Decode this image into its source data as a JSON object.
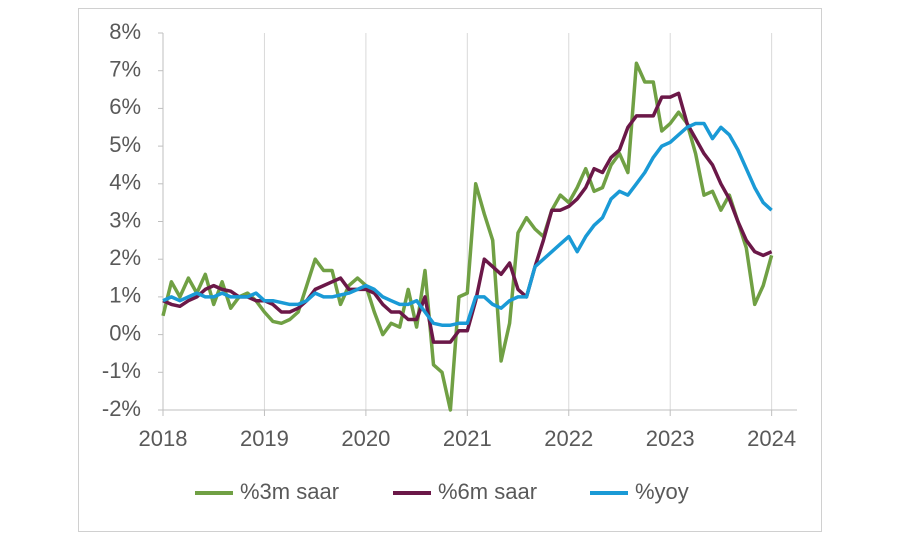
{
  "chart_data": {
    "type": "line",
    "x": [
      2018,
      2018.083,
      2018.167,
      2018.25,
      2018.333,
      2018.417,
      2018.5,
      2018.583,
      2018.667,
      2018.75,
      2018.833,
      2018.917,
      2019,
      2019.083,
      2019.167,
      2019.25,
      2019.333,
      2019.417,
      2019.5,
      2019.583,
      2019.667,
      2019.75,
      2019.833,
      2019.917,
      2020,
      2020.083,
      2020.167,
      2020.25,
      2020.333,
      2020.417,
      2020.5,
      2020.583,
      2020.667,
      2020.75,
      2020.833,
      2020.917,
      2021,
      2021.083,
      2021.167,
      2021.25,
      2021.333,
      2021.417,
      2021.5,
      2021.583,
      2021.667,
      2021.75,
      2021.833,
      2021.917,
      2022,
      2022.083,
      2022.167,
      2022.25,
      2022.333,
      2022.417,
      2022.5,
      2022.583,
      2022.667,
      2022.75,
      2022.833,
      2022.917,
      2023,
      2023.083,
      2023.167,
      2023.25,
      2023.333,
      2023.417,
      2023.5,
      2023.583,
      2023.667,
      2023.75,
      2023.833,
      2023.917,
      2024
    ],
    "series": [
      {
        "name": "%3m saar",
        "color": "#70a044",
        "values": [
          0.5,
          1.4,
          1.0,
          1.5,
          1.1,
          1.6,
          0.8,
          1.4,
          0.7,
          1.0,
          1.1,
          0.9,
          0.6,
          0.35,
          0.3,
          0.4,
          0.6,
          1.3,
          2.0,
          1.7,
          1.7,
          0.8,
          1.3,
          1.5,
          1.3,
          0.6,
          0.0,
          0.3,
          0.2,
          1.2,
          0.2,
          1.7,
          -0.8,
          -1.0,
          -2.0,
          1.0,
          1.1,
          4.0,
          3.2,
          2.5,
          -0.7,
          0.3,
          2.7,
          3.1,
          2.8,
          2.6,
          3.3,
          3.7,
          3.5,
          3.9,
          4.4,
          3.8,
          3.9,
          4.5,
          4.8,
          4.3,
          7.2,
          6.7,
          6.7,
          5.4,
          5.6,
          5.9,
          5.6,
          4.8,
          3.7,
          3.8,
          3.3,
          3.7,
          3.0,
          2.3,
          0.8,
          1.3,
          2.1
        ]
      },
      {
        "name": "%6m saar",
        "color": "#6b1848",
        "values": [
          0.9,
          0.8,
          0.75,
          0.9,
          1.0,
          1.2,
          1.3,
          1.2,
          1.15,
          1.0,
          1.0,
          0.9,
          0.9,
          0.8,
          0.6,
          0.6,
          0.7,
          0.9,
          1.2,
          1.3,
          1.4,
          1.5,
          1.2,
          1.2,
          1.2,
          1.1,
          0.8,
          0.6,
          0.6,
          0.4,
          0.4,
          1.0,
          -0.2,
          -0.2,
          -0.2,
          0.1,
          0.1,
          0.9,
          2.0,
          1.8,
          1.6,
          1.9,
          1.2,
          1.0,
          1.8,
          2.5,
          3.3,
          3.3,
          3.4,
          3.6,
          3.9,
          4.4,
          4.3,
          4.7,
          4.9,
          5.5,
          5.8,
          5.8,
          5.8,
          6.3,
          6.3,
          6.4,
          5.6,
          5.2,
          4.8,
          4.5,
          4.0,
          3.6,
          3.0,
          2.5,
          2.2,
          2.1,
          2.2
        ]
      },
      {
        "name": "%yoy",
        "color": "#1a9ad6",
        "values": [
          0.9,
          1.0,
          0.9,
          1.0,
          1.1,
          1.0,
          1.0,
          1.1,
          1.0,
          1.0,
          1.0,
          1.1,
          0.9,
          0.9,
          0.85,
          0.8,
          0.8,
          0.9,
          1.1,
          1.0,
          1.0,
          1.05,
          1.1,
          1.2,
          1.3,
          1.2,
          1.0,
          0.9,
          0.8,
          0.8,
          0.9,
          0.6,
          0.3,
          0.25,
          0.25,
          0.3,
          0.3,
          1.0,
          1.0,
          0.8,
          0.7,
          0.9,
          1.0,
          1.0,
          1.8,
          2.0,
          2.2,
          2.4,
          2.6,
          2.2,
          2.6,
          2.9,
          3.1,
          3.6,
          3.8,
          3.7,
          4.0,
          4.3,
          4.7,
          5.0,
          5.1,
          5.3,
          5.5,
          5.6,
          5.6,
          5.2,
          5.5,
          5.3,
          4.9,
          4.4,
          3.9,
          3.5,
          3.3
        ]
      }
    ],
    "xlim": [
      2018,
      2024.25
    ],
    "xticks": [
      2018,
      2019,
      2020,
      2021,
      2022,
      2023,
      2024
    ],
    "ylim": [
      -2,
      8
    ],
    "yticks": [
      {
        "value": -2,
        "label": "-2%"
      },
      {
        "value": -1,
        "label": "-1%"
      },
      {
        "value": 0,
        "label": "0%"
      },
      {
        "value": 1,
        "label": "1%"
      },
      {
        "value": 2,
        "label": "2%"
      },
      {
        "value": 3,
        "label": "3%"
      },
      {
        "value": 4,
        "label": "4%"
      },
      {
        "value": 5,
        "label": "5%"
      },
      {
        "value": 6,
        "label": "6%"
      },
      {
        "value": 7,
        "label": "7%"
      },
      {
        "value": 8,
        "label": "8%"
      }
    ],
    "grid": "x",
    "legend": "bottom"
  }
}
